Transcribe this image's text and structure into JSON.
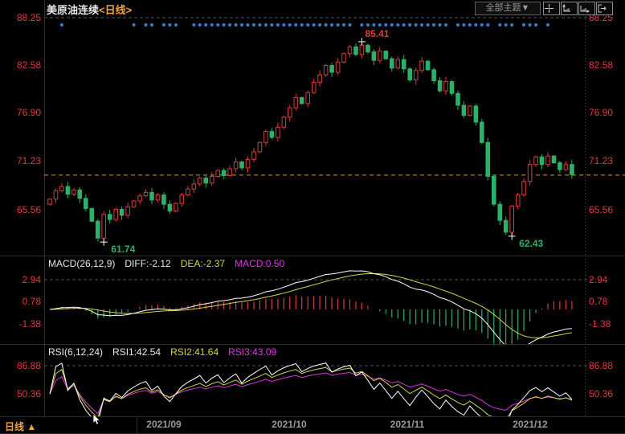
{
  "header": {
    "title_symbol": "美原油连续",
    "title_period": "<日线>",
    "theme_dropdown": "全部主题▼"
  },
  "bottom": {
    "tab_label": "日线",
    "tab_arrow": "▲"
  },
  "colors": {
    "up": "#dd3a3c",
    "down": "#2cb169",
    "axis_text": "#e03b3d",
    "last_price_line": "#e8920a",
    "signal_dots": "#2e80d2",
    "line_white": "#ffffff",
    "line_yellow": "#d6d645",
    "line_magenta": "#dd33dd",
    "grid": "#555555",
    "border": "#2e2e2e"
  },
  "chart_data": {
    "type": "candlestick",
    "title": "美原油连续<日线>",
    "x_axis": [
      "2021/09",
      "2021/10",
      "2021/11",
      "2021/12"
    ],
    "main": {
      "y_axis": [
        "88.25",
        "82.58",
        "76.90",
        "71.23",
        "65.56"
      ],
      "ylim": [
        61.5,
        88.25
      ],
      "open_first": 66.2,
      "closes": [
        66.8,
        67.8,
        68.3,
        67.4,
        67.9,
        66.9,
        65.7,
        64.2,
        62.2,
        65.0,
        64.4,
        65.6,
        64.9,
        65.9,
        66.6,
        67.2,
        67.6,
        66.7,
        67.3,
        66.2,
        65.4,
        66.3,
        67.3,
        68.0,
        68.6,
        69.3,
        68.7,
        69.5,
        70.2,
        69.6,
        70.4,
        71.2,
        70.5,
        71.5,
        72.4,
        73.5,
        74.8,
        74.1,
        75.3,
        76.5,
        77.6,
        78.8,
        78.1,
        79.4,
        80.6,
        81.5,
        82.6,
        81.8,
        83.0,
        84.0,
        84.8,
        83.9,
        85.0,
        84.2,
        83.2,
        84.3,
        83.4,
        82.3,
        83.3,
        82.2,
        80.9,
        82.0,
        83.1,
        82.1,
        80.8,
        79.6,
        80.7,
        79.3,
        77.9,
        76.7,
        77.8,
        75.9,
        73.5,
        69.5,
        66.2,
        64.3,
        62.9,
        66.0,
        67.3,
        68.9,
        70.9,
        71.8,
        70.9,
        71.9,
        71.1,
        70.3,
        70.9,
        69.7
      ],
      "annotations": [
        {
          "index": 52,
          "kind": "high",
          "value": 85.41,
          "label": "85.41"
        },
        {
          "index": 9,
          "kind": "low",
          "value": 61.74,
          "label": "61.74"
        },
        {
          "index": 77,
          "kind": "low",
          "value": 62.43,
          "label": "62.43"
        }
      ],
      "last_price_line": 69.65,
      "signal_dot_indices": [
        2,
        14,
        16,
        17,
        19,
        20,
        21,
        24,
        25,
        26,
        27,
        28,
        29,
        30,
        31,
        32,
        33,
        34,
        35,
        36,
        37,
        38,
        39,
        40,
        41,
        42,
        43,
        44,
        45,
        46,
        47,
        48,
        49,
        50,
        52,
        53,
        54,
        55,
        56,
        57,
        58,
        59,
        60,
        61,
        62,
        63,
        64,
        65,
        66,
        68,
        69,
        70,
        71,
        72,
        73,
        75,
        76,
        77,
        79,
        80,
        81,
        83
      ]
    },
    "macd": {
      "label": "MACD(26,12,9)",
      "diff": "DIFF:-2.12",
      "dea": "DEA:-2.37",
      "macd_val": "MACD:0.50",
      "params": [
        26,
        12,
        9
      ],
      "y_axis": [
        "2.94",
        "0.78",
        "-1.38"
      ]
    },
    "rsi": {
      "label": "RSI(6,12,24)",
      "rsi1": "RSI1:42.54",
      "rsi2": "RSI2:41.64",
      "rsi3": "RSI3:43.09",
      "params": [
        6,
        12,
        24
      ],
      "y_axis": [
        "86.88",
        "50.36"
      ]
    }
  }
}
